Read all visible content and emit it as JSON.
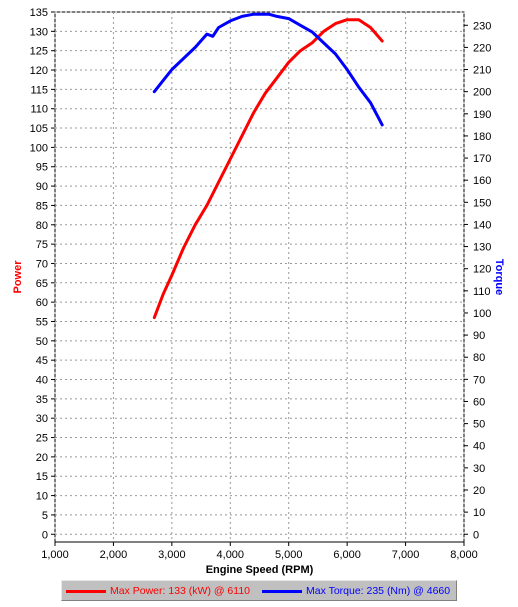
{
  "chart_data": {
    "type": "line",
    "xlabel": "Engine Speed (RPM)",
    "ylabel_left": "Power",
    "ylabel_right": "Torque",
    "xlim": [
      1000,
      8000
    ],
    "x_ticks": [
      "1,000",
      "2,000",
      "3,000",
      "4,000",
      "5,000",
      "6,000",
      "7,000",
      "8,000"
    ],
    "x_tick_values": [
      1000,
      2000,
      3000,
      4000,
      5000,
      6000,
      7000,
      8000
    ],
    "ylim_left": [
      -2,
      135
    ],
    "ylim_right": [
      -3.5,
      236
    ],
    "y_left_ticks": [
      0,
      5,
      10,
      15,
      20,
      25,
      30,
      35,
      40,
      45,
      50,
      55,
      60,
      65,
      70,
      75,
      80,
      85,
      90,
      95,
      100,
      105,
      110,
      115,
      120,
      125,
      130,
      135
    ],
    "y_right_ticks": [
      0,
      10,
      20,
      30,
      40,
      50,
      60,
      70,
      80,
      90,
      100,
      110,
      120,
      130,
      140,
      150,
      160,
      170,
      180,
      190,
      200,
      210,
      220,
      230
    ],
    "grid": true,
    "legend_position": "bottom",
    "series": [
      {
        "name": "Power",
        "color": "#ff0000",
        "axis": "left",
        "x": [
          2700,
          2850,
          3000,
          3200,
          3400,
          3600,
          3800,
          4000,
          4200,
          4400,
          4600,
          4800,
          5000,
          5200,
          5400,
          5600,
          5800,
          6000,
          6110,
          6200,
          6400,
          6600
        ],
        "y": [
          56,
          62,
          67,
          74,
          80,
          85,
          91,
          97,
          103,
          109,
          114,
          118,
          122,
          125,
          127,
          130,
          132,
          133,
          133,
          133,
          131,
          127.5
        ]
      },
      {
        "name": "Torque",
        "color": "#0000ff",
        "axis": "right",
        "x": [
          2700,
          2850,
          3000,
          3200,
          3400,
          3600,
          3700,
          3800,
          4000,
          4200,
          4400,
          4660,
          4800,
          5000,
          5200,
          5400,
          5600,
          5800,
          6000,
          6200,
          6400,
          6600
        ],
        "y": [
          200,
          205,
          210,
          215,
          220,
          226,
          225,
          229,
          232,
          234,
          235,
          235,
          234,
          233,
          230,
          227,
          222,
          217,
          210,
          202,
          195,
          185
        ]
      }
    ]
  },
  "legend": {
    "power_label": "Max Power: 133 (kW) @ 6110",
    "torque_label": "Max Torque: 235 (Nm) @ 4660"
  }
}
